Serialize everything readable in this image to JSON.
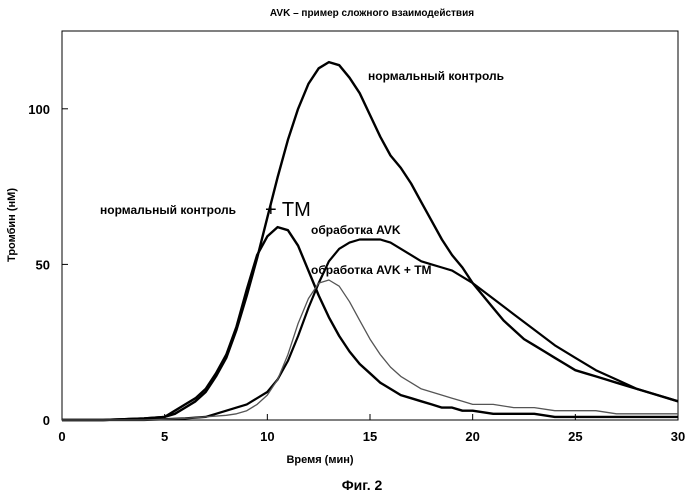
{
  "chart_data": {
    "type": "line",
    "title": "AVK –   пример сложного взаимодействия",
    "xlabel": "Время (мин)",
    "ylabel": "Тромбин (нМ)",
    "xlim": [
      0,
      30
    ],
    "ylim": [
      0,
      125
    ],
    "xticks": [
      0,
      5,
      10,
      15,
      20,
      25,
      30
    ],
    "yticks": [
      0,
      50,
      100
    ],
    "grid": false,
    "figure_caption": "Фиг. 2",
    "series": [
      {
        "name": "нормальный контроль",
        "color": "#000000",
        "x": [
          0,
          2,
          4,
          5,
          5.5,
          6,
          6.5,
          7,
          7.5,
          8,
          8.5,
          9,
          9.5,
          10,
          10.5,
          11,
          11.5,
          12,
          12.5,
          13,
          13.5,
          14,
          14.5,
          15,
          15.5,
          16,
          16.5,
          17,
          17.5,
          18,
          18.5,
          19,
          19.5,
          20,
          20.5,
          21,
          21.5,
          22,
          22.5,
          23,
          23.5,
          24,
          24.5,
          25,
          25.5,
          26,
          26.5,
          27,
          27.5,
          28,
          28.5,
          29,
          29.5,
          30
        ],
        "y": [
          0,
          0,
          0.5,
          1,
          2,
          4,
          6,
          9,
          14,
          20,
          29,
          40,
          52,
          65,
          78,
          90,
          100,
          108,
          113,
          115,
          114,
          110,
          105,
          98,
          91,
          85,
          81,
          76,
          70,
          64,
          58,
          53,
          49,
          44,
          40,
          36,
          32,
          29,
          26,
          24,
          22,
          20,
          18,
          16,
          15,
          14,
          13,
          12,
          11,
          10,
          9,
          8,
          7,
          6
        ]
      },
      {
        "name": "нормальный контроль + TM",
        "label_parts": [
          "нормальный контроль",
          "+ TM"
        ],
        "color": "#000000",
        "x": [
          0,
          2,
          4,
          5,
          5.5,
          6,
          6.5,
          7,
          7.5,
          8,
          8.5,
          9,
          9.5,
          10,
          10.5,
          11,
          11.5,
          12,
          12.5,
          13,
          13.5,
          14,
          14.5,
          15,
          15.5,
          16,
          16.5,
          17,
          17.5,
          18,
          18.5,
          19,
          19.5,
          20,
          21,
          22,
          23,
          24,
          25,
          26,
          27,
          28,
          29,
          30
        ],
        "y": [
          0,
          0,
          0.5,
          1,
          3,
          5,
          7,
          10,
          15,
          21,
          30,
          42,
          53,
          59,
          62,
          61,
          56,
          48,
          40,
          33,
          27,
          22,
          18,
          15,
          12,
          10,
          8,
          7,
          6,
          5,
          4,
          4,
          3,
          3,
          2,
          2,
          2,
          1,
          1,
          1,
          1,
          1,
          1,
          1
        ]
      },
      {
        "name": "обработка AVK",
        "color": "#000000",
        "x": [
          0,
          2,
          4,
          6,
          7,
          7.5,
          8,
          8.5,
          9,
          9.5,
          10,
          10.5,
          11,
          11.5,
          12,
          12.5,
          13,
          13.5,
          14,
          14.5,
          15,
          15.5,
          16,
          16.5,
          17,
          17.5,
          18,
          18.5,
          19,
          19.5,
          20,
          21,
          22,
          23,
          24,
          25,
          26,
          27,
          28,
          29,
          30
        ],
        "y": [
          0,
          0,
          0,
          0.5,
          1,
          2,
          3,
          4,
          5,
          7,
          9,
          13,
          19,
          27,
          36,
          44,
          51,
          55,
          57,
          58,
          58,
          58,
          57,
          55,
          53,
          51,
          50,
          49,
          48,
          46,
          44,
          39,
          34,
          29,
          24,
          20,
          16,
          13,
          10,
          8,
          6
        ]
      },
      {
        "name": "обработка AVK + TM",
        "color": "#555555",
        "x": [
          0,
          2,
          4,
          6,
          7,
          8,
          8.5,
          9,
          9.5,
          10,
          10.5,
          11,
          11.5,
          12,
          12.5,
          13,
          13.5,
          14,
          14.5,
          15,
          15.5,
          16,
          16.5,
          17,
          17.5,
          18,
          18.5,
          19,
          19.5,
          20,
          21,
          22,
          23,
          24,
          25,
          26,
          27,
          28,
          29,
          30
        ],
        "y": [
          0,
          0,
          0,
          0.5,
          1,
          1.5,
          2,
          3,
          5,
          8,
          13,
          21,
          31,
          39,
          44,
          45,
          43,
          38,
          32,
          26,
          21,
          17,
          14,
          12,
          10,
          9,
          8,
          7,
          6,
          5,
          5,
          4,
          4,
          3,
          3,
          3,
          2,
          2,
          2,
          2
        ]
      }
    ]
  }
}
